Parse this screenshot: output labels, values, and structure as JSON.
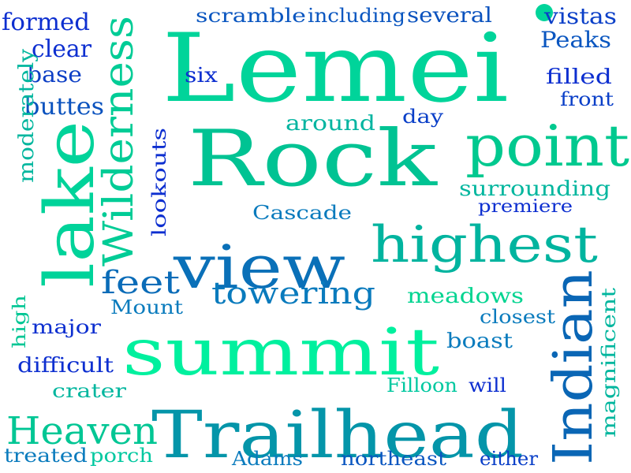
{
  "words": [
    {
      "text": "Lemei",
      "color": "#00d49a"
    },
    {
      "text": "Rock",
      "color": "#00c393"
    },
    {
      "text": "point",
      "color": "#00c98f"
    },
    {
      "text": "lake",
      "color": "#00d39a"
    },
    {
      "text": "view",
      "color": "#0a70b8"
    },
    {
      "text": "highest",
      "color": "#00b49f"
    },
    {
      "text": "Wilderness",
      "color": "#00cc96"
    },
    {
      "text": "summit",
      "color": "#00f09e"
    },
    {
      "text": "Trailhead",
      "color": "#0495a9"
    },
    {
      "text": "Indian",
      "color": "#0a66b5"
    },
    {
      "text": "Heaven",
      "color": "#00c694"
    },
    {
      "text": "towering",
      "color": "#0a7bbd"
    },
    {
      "text": "feet",
      "color": "#0a6cb8"
    },
    {
      "text": "formed",
      "color": "#0d2fd0"
    },
    {
      "text": "clear",
      "color": "#0d2fd0"
    },
    {
      "text": "base",
      "color": "#0d3fc5"
    },
    {
      "text": "buttes",
      "color": "#0a52be"
    },
    {
      "text": "moderately",
      "color": "#00b69e"
    },
    {
      "text": "scramble",
      "color": "#0a56c0"
    },
    {
      "text": "including",
      "color": "#0a56c0"
    },
    {
      "text": "several",
      "color": "#0a52be"
    },
    {
      "text": "vistas",
      "color": "#0a3fc8"
    },
    {
      "text": "Peaks",
      "color": "#0a56c0"
    },
    {
      "text": "six",
      "color": "#0d2fd0"
    },
    {
      "text": "filled",
      "color": "#0d2fd0"
    },
    {
      "text": "front",
      "color": "#0a3fc8"
    },
    {
      "text": "day",
      "color": "#0a3fc8"
    },
    {
      "text": "around",
      "color": "#00b4a0"
    },
    {
      "text": "lookouts",
      "color": "#0d2fd0"
    },
    {
      "text": "surrounding",
      "color": "#00b69e"
    },
    {
      "text": "Cascade",
      "color": "#0a7bbd"
    },
    {
      "text": "premiere",
      "color": "#0d2fd0"
    },
    {
      "text": "meadows",
      "color": "#00d490"
    },
    {
      "text": "Mount",
      "color": "#0a7bbd"
    },
    {
      "text": "closest",
      "color": "#0a7bbd"
    },
    {
      "text": "high",
      "color": "#00c694"
    },
    {
      "text": "major",
      "color": "#0d2fd0"
    },
    {
      "text": "boast",
      "color": "#0a7bbd"
    },
    {
      "text": "magnificent",
      "color": "#00b69e"
    },
    {
      "text": "difficult",
      "color": "#0d2fd0"
    },
    {
      "text": "crater",
      "color": "#00b69e"
    },
    {
      "text": "Filloon",
      "color": "#00c8a0"
    },
    {
      "text": "will",
      "color": "#0d2fd0"
    },
    {
      "text": "treated",
      "color": "#0a7bbd"
    },
    {
      "text": "porch",
      "color": "#00c8a0"
    },
    {
      "text": "Adams",
      "color": "#0a7bbd"
    },
    {
      "text": "northeast",
      "color": "#0a56c0"
    },
    {
      "text": "either",
      "color": "#0a3fc8"
    }
  ],
  "dot": {
    "color": "#00d49a"
  }
}
